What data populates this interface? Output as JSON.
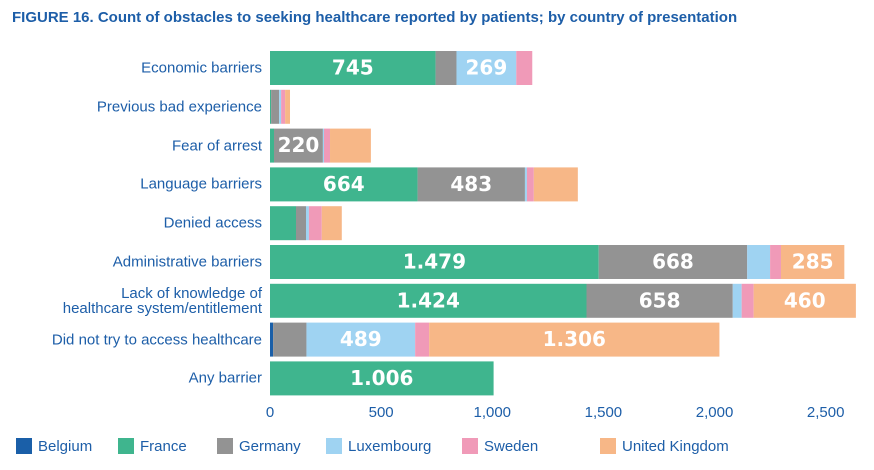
{
  "chart_data": {
    "type": "stacked_barh",
    "title": "FIGURE 16. Count of obstacles to seeking healthcare reported by patients; by country of presentation",
    "categories": [
      "Economic barriers",
      "Previous bad experience",
      "Fear of arrest",
      "Language barriers",
      "Denied access",
      "Administrative  barriers",
      "Lack of knowledge of\nhealthcare system/entitlement",
      "Did  not try to access healthcare",
      "Any barrier"
    ],
    "series": [
      {
        "name": "Belgium",
        "color": "#1a5fa8",
        "values": [
          0,
          0,
          0,
          0,
          0,
          0,
          0,
          14,
          0
        ],
        "value_labels": [
          null,
          null,
          null,
          null,
          null,
          null,
          null,
          null,
          null
        ]
      },
      {
        "name": "France",
        "color": "#3fb58e",
        "values": [
          745,
          5,
          18,
          664,
          117,
          1479,
          1424,
          0,
          1006
        ],
        "value_labels": [
          "745",
          null,
          null,
          "664",
          null,
          "1.479",
          "1.424",
          null,
          "1.006"
        ]
      },
      {
        "name": "Germany",
        "color": "#939393",
        "values": [
          94,
          36,
          220,
          483,
          45,
          668,
          658,
          150,
          0
        ],
        "value_labels": [
          null,
          null,
          "220",
          "483",
          null,
          "668",
          "658",
          null,
          null
        ]
      },
      {
        "name": "Luxembourg",
        "color": "#9fd3f2",
        "values": [
          269,
          9,
          5,
          9,
          13,
          103,
          40,
          489,
          0
        ],
        "value_labels": [
          "269",
          null,
          null,
          null,
          null,
          null,
          null,
          "489",
          null
        ]
      },
      {
        "name": "Sweden",
        "color": "#f09ab8",
        "values": [
          72,
          18,
          27,
          31,
          58,
          49,
          54,
          63,
          0
        ],
        "value_labels": [
          null,
          null,
          null,
          null,
          null,
          null,
          null,
          null,
          null
        ]
      },
      {
        "name": "United Kingdom",
        "color": "#f7b787",
        "values": [
          0,
          22,
          184,
          198,
          90,
          285,
          460,
          1306,
          0
        ],
        "value_labels": [
          null,
          null,
          null,
          null,
          null,
          "285",
          "460",
          "1.306",
          null
        ]
      }
    ],
    "xlim": [
      0,
      2650
    ],
    "xticks": [
      0,
      500,
      {
        "value": 1000,
        "label": "1,000"
      },
      {
        "value": 1500,
        "label": "1,500"
      },
      {
        "value": 2000,
        "label": "2,000"
      },
      {
        "value": 2500,
        "label": "2,500"
      }
    ]
  }
}
